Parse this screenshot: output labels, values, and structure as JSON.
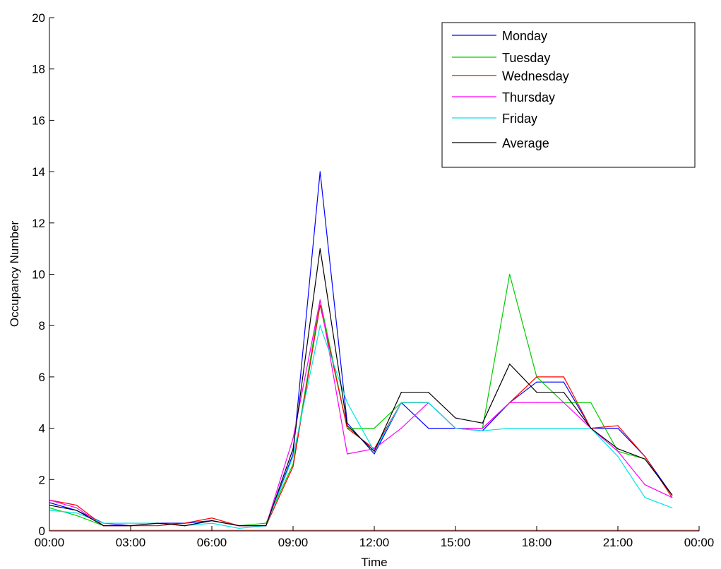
{
  "chart_data": {
    "type": "line",
    "title": "",
    "xlabel": "Time",
    "ylabel": "Occupancy Number",
    "xlim": [
      0,
      24
    ],
    "ylim": [
      0,
      20
    ],
    "xticks": [
      0,
      3,
      6,
      9,
      12,
      15,
      18,
      21,
      24
    ],
    "xtick_labels": [
      "00:00",
      "03:00",
      "06:00",
      "09:00",
      "12:00",
      "15:00",
      "18:00",
      "21:00",
      "00:00"
    ],
    "yticks": [
      0,
      2,
      4,
      6,
      8,
      10,
      12,
      14,
      16,
      18,
      20
    ],
    "ytick_labels": [
      "0",
      "2",
      "4",
      "6",
      "8",
      "10",
      "12",
      "14",
      "16",
      "18",
      "20"
    ],
    "grid": false,
    "legend_position": "top-right",
    "x": [
      0,
      1,
      2,
      3,
      4,
      5,
      6,
      7,
      8,
      9,
      10,
      11,
      12,
      13,
      14,
      15,
      16,
      17,
      18,
      19,
      20,
      21,
      22,
      23
    ],
    "series": [
      {
        "name": "Monday",
        "color": "#0000ff",
        "values": [
          1.1,
          0.8,
          0.3,
          0.2,
          0.3,
          0.3,
          0.4,
          0.2,
          0.2,
          3.0,
          14.0,
          4.2,
          3.0,
          5.0,
          4.0,
          4.0,
          3.9,
          5.0,
          5.8,
          5.8,
          4.0,
          4.0,
          2.9,
          1.4
        ]
      },
      {
        "name": "Tuesday",
        "color": "#00cc00",
        "values": [
          0.9,
          0.6,
          0.2,
          0.2,
          0.3,
          0.2,
          0.4,
          0.2,
          0.3,
          2.6,
          9.0,
          4.0,
          4.0,
          5.0,
          5.0,
          4.0,
          4.0,
          10.0,
          6.0,
          5.0,
          5.0,
          3.1,
          2.8,
          1.4
        ]
      },
      {
        "name": "Wednesday",
        "color": "#ff0000",
        "values": [
          1.2,
          1.0,
          0.2,
          0.2,
          0.2,
          0.3,
          0.5,
          0.2,
          0.2,
          2.5,
          8.8,
          4.0,
          3.2,
          5.0,
          5.0,
          4.0,
          4.0,
          5.0,
          6.0,
          6.0,
          4.0,
          4.1,
          2.9,
          1.3
        ]
      },
      {
        "name": "Thursday",
        "color": "#ff00ff",
        "values": [
          1.2,
          0.9,
          0.2,
          0.2,
          0.3,
          0.2,
          0.4,
          0.2,
          0.2,
          3.6,
          9.0,
          3.0,
          3.2,
          4.0,
          5.0,
          4.0,
          4.0,
          5.0,
          5.0,
          5.0,
          4.0,
          3.1,
          1.8,
          1.3
        ]
      },
      {
        "name": "Friday",
        "color": "#00e5e5",
        "values": [
          0.8,
          0.7,
          0.3,
          0.3,
          0.3,
          0.2,
          0.3,
          0.1,
          0.2,
          2.9,
          8.0,
          5.0,
          3.1,
          5.0,
          5.0,
          4.0,
          3.9,
          4.0,
          4.0,
          4.0,
          4.0,
          2.9,
          1.3,
          0.9
        ]
      },
      {
        "name": "Average",
        "color": "#000000",
        "values": [
          1.0,
          0.8,
          0.2,
          0.2,
          0.3,
          0.2,
          0.4,
          0.2,
          0.2,
          3.2,
          11.0,
          4.1,
          3.1,
          5.4,
          5.4,
          4.4,
          4.2,
          6.5,
          5.4,
          5.4,
          4.0,
          3.2,
          2.8,
          1.4
        ]
      }
    ]
  }
}
